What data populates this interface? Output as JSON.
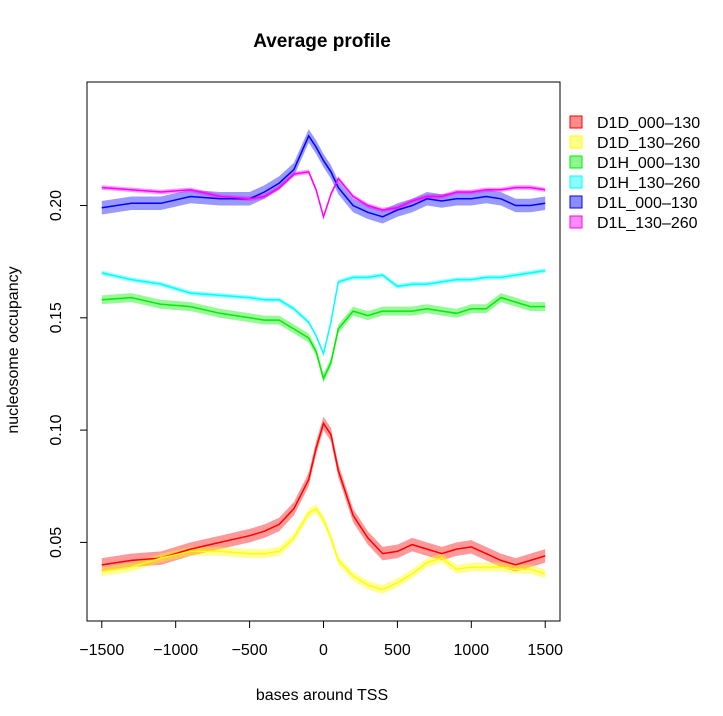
{
  "chart_data": {
    "type": "line",
    "title": "Average profile",
    "xlabel": "bases around TSS",
    "ylabel": "nucleosome occupancy",
    "xlim": [
      -1600,
      1600
    ],
    "ylim": [
      0.015,
      0.255
    ],
    "x_ticks": [
      -1500,
      -1000,
      -500,
      0,
      500,
      1000,
      1500
    ],
    "x_tick_labels": [
      "−1500",
      "−1000",
      "−500",
      "0",
      "500",
      "1000",
      "1500"
    ],
    "y_ticks": [
      0.05,
      0.1,
      0.15,
      0.2
    ],
    "y_tick_labels": [
      "0.05",
      "0.10",
      "0.15",
      "0.20"
    ],
    "grid": false,
    "legend_position": "right",
    "x": [
      -1500,
      -1300,
      -1100,
      -900,
      -700,
      -500,
      -400,
      -300,
      -200,
      -100,
      -50,
      0,
      50,
      100,
      200,
      300,
      400,
      500,
      600,
      700,
      800,
      900,
      1000,
      1100,
      1200,
      1300,
      1400,
      1500
    ],
    "series": [
      {
        "name": "D1D_000–130",
        "color": "#ff0000",
        "band": 0.003,
        "values": [
          0.04,
          0.042,
          0.043,
          0.047,
          0.05,
          0.053,
          0.055,
          0.058,
          0.065,
          0.078,
          0.092,
          0.103,
          0.098,
          0.082,
          0.062,
          0.052,
          0.045,
          0.046,
          0.049,
          0.047,
          0.045,
          0.047,
          0.048,
          0.045,
          0.042,
          0.04,
          0.042,
          0.044
        ]
      },
      {
        "name": "D1D_130–260",
        "color": "#ffff00",
        "band": 0.002,
        "values": [
          0.037,
          0.039,
          0.043,
          0.046,
          0.046,
          0.045,
          0.045,
          0.046,
          0.052,
          0.063,
          0.065,
          0.06,
          0.052,
          0.042,
          0.035,
          0.031,
          0.029,
          0.032,
          0.036,
          0.041,
          0.043,
          0.038,
          0.039,
          0.039,
          0.039,
          0.038,
          0.038,
          0.036
        ]
      },
      {
        "name": "D1H_000–130",
        "color": "#00ee00",
        "band": 0.002,
        "values": [
          0.158,
          0.159,
          0.156,
          0.155,
          0.152,
          0.15,
          0.149,
          0.149,
          0.145,
          0.141,
          0.135,
          0.123,
          0.13,
          0.145,
          0.153,
          0.151,
          0.153,
          0.153,
          0.153,
          0.154,
          0.153,
          0.152,
          0.154,
          0.154,
          0.159,
          0.157,
          0.155,
          0.155
        ]
      },
      {
        "name": "D1H_130–260",
        "color": "#00ffff",
        "band": 0.001,
        "values": [
          0.17,
          0.167,
          0.165,
          0.161,
          0.16,
          0.159,
          0.158,
          0.158,
          0.154,
          0.148,
          0.142,
          0.134,
          0.148,
          0.166,
          0.168,
          0.168,
          0.169,
          0.164,
          0.165,
          0.165,
          0.166,
          0.167,
          0.167,
          0.168,
          0.168,
          0.169,
          0.17,
          0.171
        ]
      },
      {
        "name": "D1L_000–130",
        "color": "#0000ff",
        "band": 0.003,
        "values": [
          0.199,
          0.201,
          0.201,
          0.204,
          0.203,
          0.203,
          0.206,
          0.21,
          0.216,
          0.231,
          0.226,
          0.22,
          0.215,
          0.208,
          0.2,
          0.197,
          0.195,
          0.198,
          0.2,
          0.203,
          0.202,
          0.203,
          0.203,
          0.204,
          0.203,
          0.2,
          0.2,
          0.201
        ]
      },
      {
        "name": "D1L_130–260",
        "color": "#ff00ff",
        "band": 0.001,
        "values": [
          0.208,
          0.207,
          0.206,
          0.207,
          0.204,
          0.203,
          0.204,
          0.208,
          0.214,
          0.215,
          0.207,
          0.195,
          0.205,
          0.212,
          0.204,
          0.2,
          0.198,
          0.199,
          0.202,
          0.204,
          0.204,
          0.206,
          0.206,
          0.207,
          0.207,
          0.208,
          0.208,
          0.207
        ]
      }
    ]
  }
}
